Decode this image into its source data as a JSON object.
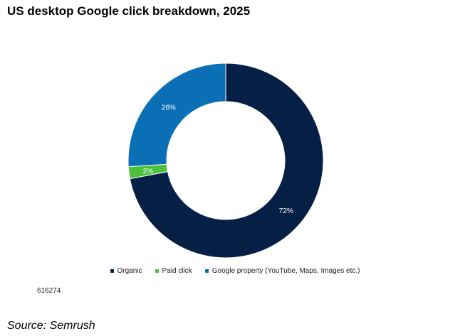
{
  "title": "US desktop Google click breakdown, 2025",
  "chart_id": "616274",
  "source": "Source: Semrush",
  "chart_data": {
    "type": "pie",
    "style": "donut",
    "categories": [
      "Organic",
      "Paid click",
      "Google property (YouTube, Maps, Images etc.)"
    ],
    "values": [
      72,
      2,
      26
    ],
    "labels": [
      "72%",
      "2%",
      "26%"
    ],
    "colors": [
      "#061f45",
      "#4cc13b",
      "#0b6fb6"
    ],
    "legend": "bottom"
  }
}
